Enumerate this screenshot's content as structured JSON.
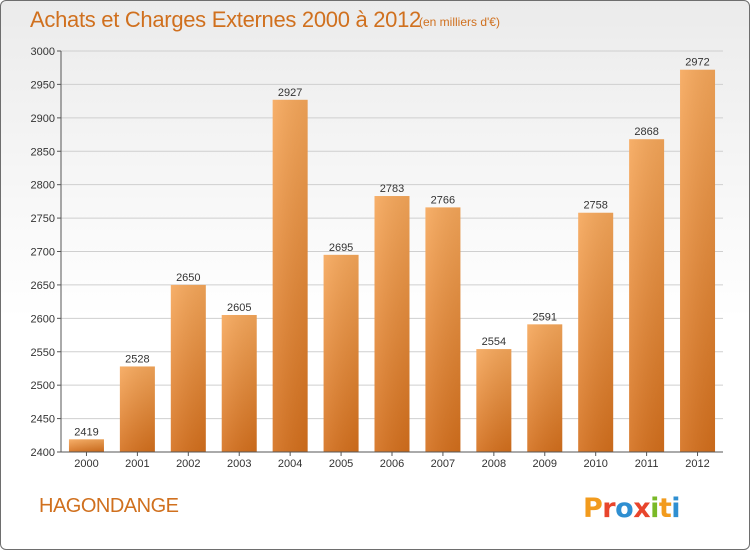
{
  "title": "Achats et Charges Externes 2000 à 2012",
  "subtitle": "(en milliers d'€)",
  "commune": "HAGONDANGE",
  "logo": {
    "text": "Proxiti",
    "colors": [
      "#f29b1d",
      "#e8452c",
      "#2f8fd1",
      "#e8452c",
      "#7ab927",
      "#f29b1d",
      "#2f8fd1"
    ]
  },
  "colors": {
    "accent": "#d0701e",
    "bar_top": "#f6a75a",
    "bar_bottom": "#d46f1c"
  },
  "chart_data": {
    "type": "bar",
    "categories": [
      "2000",
      "2001",
      "2002",
      "2003",
      "2004",
      "2005",
      "2006",
      "2007",
      "2008",
      "2009",
      "2010",
      "2011",
      "2012"
    ],
    "values": [
      2419,
      2528,
      2650,
      2605,
      2927,
      2695,
      2783,
      2766,
      2554,
      2591,
      2758,
      2868,
      2972
    ],
    "ylim": [
      2400,
      3000
    ],
    "yticks": [
      2400,
      2450,
      2500,
      2550,
      2600,
      2650,
      2700,
      2750,
      2800,
      2850,
      2900,
      2950,
      3000
    ],
    "grid": true
  }
}
